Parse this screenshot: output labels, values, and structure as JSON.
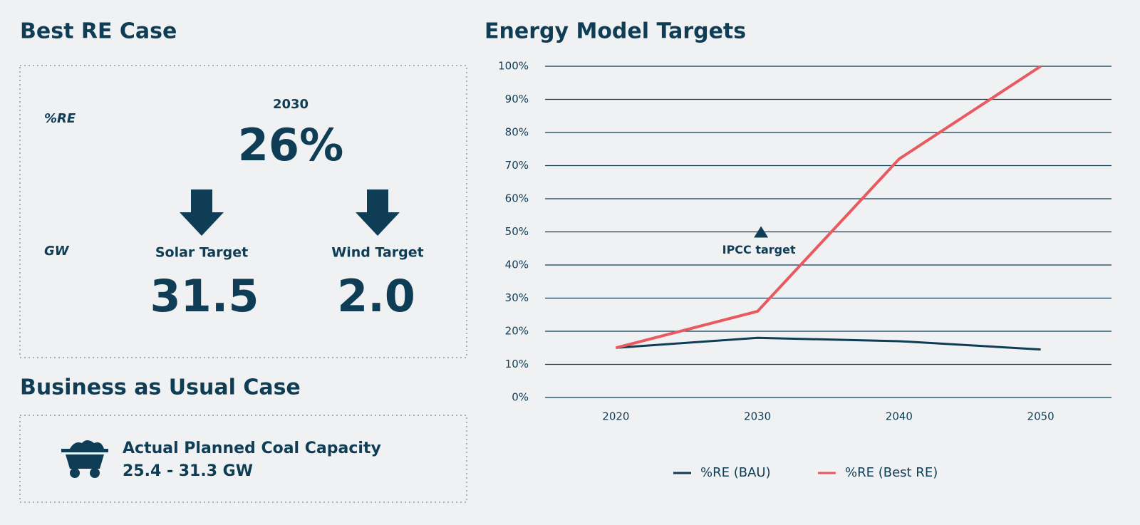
{
  "left": {
    "best_title": "Best RE Case",
    "re_label": "%RE",
    "year": "2030",
    "re_value": "26%",
    "gw_label": "GW",
    "solar_label": "Solar Target",
    "solar_value": "31.5",
    "wind_label": "Wind Target",
    "wind_value": "2.0",
    "bau_title": "Business as Usual Case",
    "coal_label": "Actual Planned Coal Capacity",
    "coal_value": "25.4 - 31.3 GW"
  },
  "chart_data": {
    "type": "line",
    "title": "Energy Model Targets",
    "categories": [
      "2020",
      "2030",
      "2040",
      "2050"
    ],
    "series": [
      {
        "name": "%RE (BAU)",
        "color": "#0e3d55",
        "values": [
          15,
          18,
          17,
          14.5
        ]
      },
      {
        "name": "%RE (Best RE)",
        "color": "#e85a5f",
        "values": [
          15,
          26,
          72,
          100
        ]
      }
    ],
    "ylim": [
      0,
      100
    ],
    "yticks": [
      {
        "value": 0,
        "label": "0%"
      },
      {
        "value": 10,
        "label": "10%"
      },
      {
        "value": 20,
        "label": "20%"
      },
      {
        "value": 30,
        "label": "30%"
      },
      {
        "value": 40,
        "label": "40%"
      },
      {
        "value": 50,
        "label": "50%"
      },
      {
        "value": 60,
        "label": "60%"
      },
      {
        "value": 70,
        "label": "70%"
      },
      {
        "value": 80,
        "label": "80%"
      },
      {
        "value": 90,
        "label": "90%"
      },
      {
        "value": 100,
        "label": "100%"
      }
    ],
    "grid": true,
    "legend": "bottom",
    "annotations": [
      {
        "label": "IPCC target",
        "category": "2030",
        "value": 50
      }
    ]
  }
}
